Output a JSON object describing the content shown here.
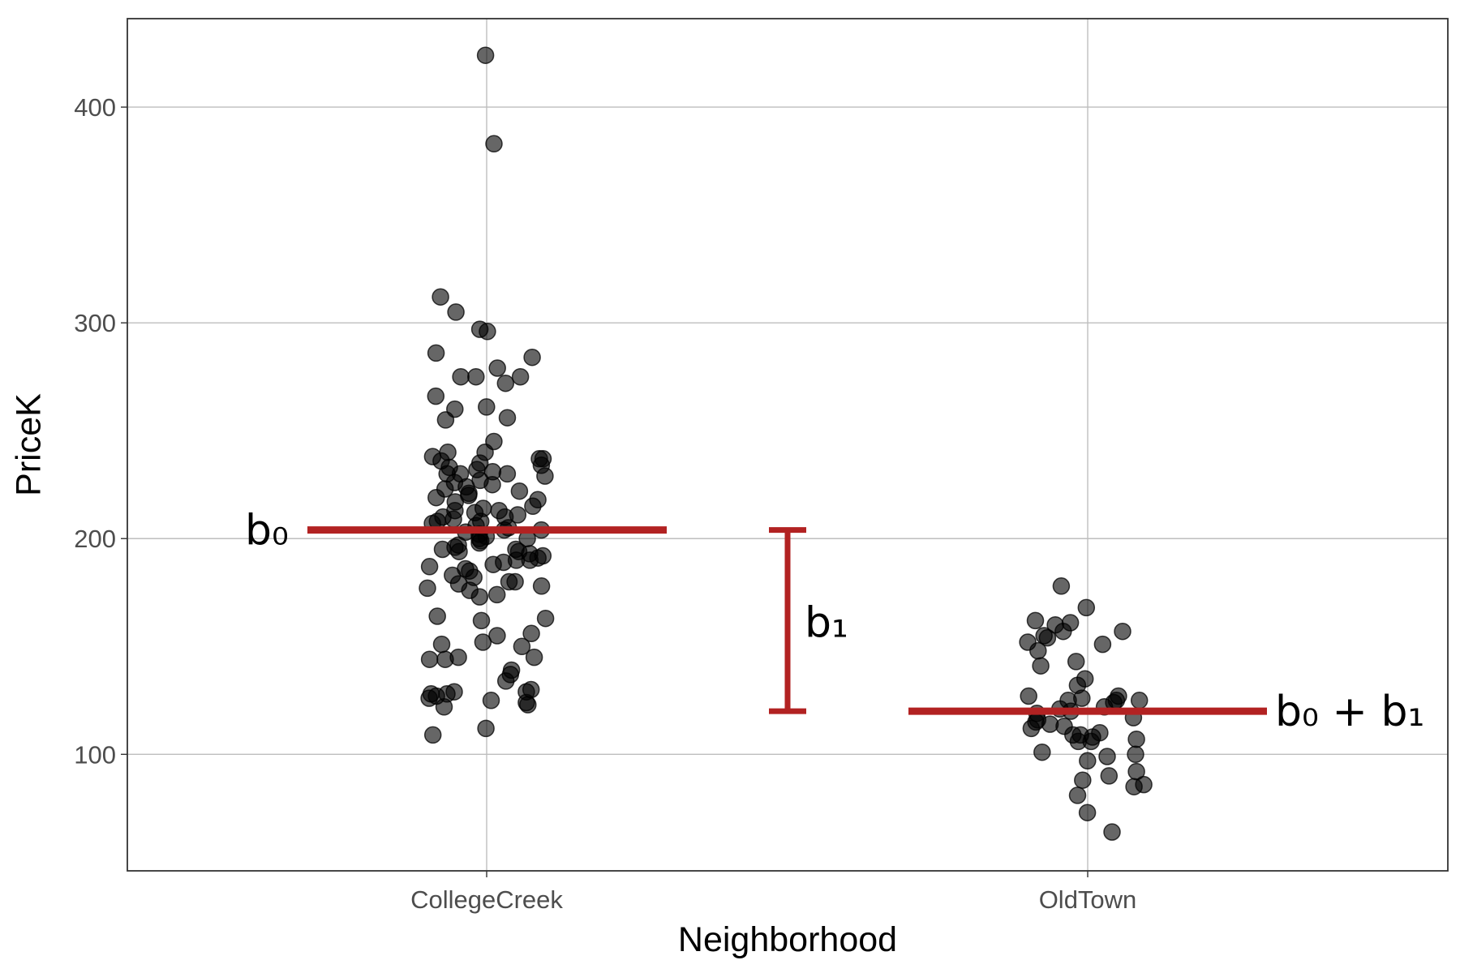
{
  "chart_data": {
    "type": "scatter",
    "title": "",
    "xlabel": "Neighborhood",
    "ylabel": "PriceK",
    "categories": [
      "CollegeCreek",
      "OldTown"
    ],
    "ylim": [
      46,
      441
    ],
    "yticks": [
      100,
      200,
      300,
      400
    ],
    "grid": true,
    "colors": {
      "points": "#000000",
      "annotation": "#b22222",
      "grid": "#bebebe",
      "panel_border": "#333333",
      "tick_text": "#4d4d4d"
    },
    "series": [
      {
        "category": "CollegeCreek",
        "values": [
          424,
          383,
          312,
          305,
          297,
          296,
          286,
          284,
          279,
          275,
          275,
          275,
          272,
          266,
          261,
          260,
          256,
          255,
          245,
          240,
          240,
          238,
          237,
          237,
          236,
          235,
          234,
          233,
          232,
          231,
          230,
          230,
          230,
          229,
          227,
          226,
          225,
          224,
          223,
          222,
          221,
          220,
          219,
          218,
          217,
          215,
          214,
          213,
          213,
          212,
          211,
          210,
          210,
          209,
          208,
          208,
          207,
          206,
          205,
          204,
          204,
          203,
          202,
          201,
          200,
          200,
          199,
          198,
          197,
          196,
          195,
          195,
          194,
          194,
          193,
          192,
          191,
          190,
          190,
          189,
          188,
          187,
          186,
          185,
          183,
          182,
          180,
          180,
          179,
          178,
          177,
          176,
          174,
          173,
          164,
          163,
          162,
          156,
          155,
          152,
          151,
          150,
          145,
          145,
          144,
          144,
          139,
          137,
          134,
          130,
          129,
          129,
          128,
          128,
          127,
          126,
          125,
          124,
          123,
          122,
          112,
          109
        ]
      },
      {
        "category": "OldTown",
        "values": [
          178,
          168,
          162,
          161,
          160,
          157,
          157,
          155,
          154,
          152,
          151,
          148,
          143,
          141,
          135,
          132,
          127,
          127,
          126,
          125,
          125,
          125,
          124,
          122,
          121,
          120,
          119,
          117,
          116,
          115,
          114,
          113,
          112,
          110,
          109,
          109,
          108,
          107,
          106,
          106,
          101,
          100,
          99,
          97,
          92,
          90,
          88,
          86,
          85,
          81,
          73,
          64
        ]
      }
    ],
    "annotations": [
      {
        "label": "b₀",
        "value": 204,
        "category": "CollegeCreek"
      },
      {
        "label": "b₀ + b₁",
        "value": 120,
        "category": "OldTown"
      },
      {
        "label": "b₁",
        "from": 120,
        "to": 204
      }
    ]
  }
}
